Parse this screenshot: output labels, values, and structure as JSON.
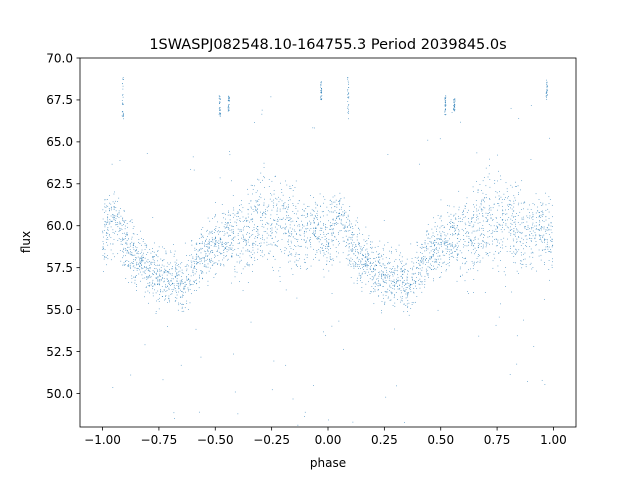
{
  "chart_data": {
    "type": "scatter",
    "title": "1SWASPJ082548.10-164755.3 Period 2039845.0s",
    "xlabel": "phase",
    "ylabel": "flux",
    "xlim": [
      -1.1,
      1.1
    ],
    "ylim": [
      48.0,
      70.0
    ],
    "xticks": [
      -1.0,
      -0.75,
      -0.5,
      -0.25,
      0.0,
      0.25,
      0.5,
      0.75,
      1.0
    ],
    "xtick_labels": [
      "−1.00",
      "−0.75",
      "−0.50",
      "−0.25",
      "0.00",
      "0.25",
      "0.50",
      "0.75",
      "1.00"
    ],
    "yticks": [
      50.0,
      52.5,
      55.0,
      57.5,
      60.0,
      62.5,
      65.0,
      67.5,
      70.0
    ],
    "ytick_labels": [
      "50.0",
      "52.5",
      "55.0",
      "57.5",
      "60.0",
      "62.5",
      "65.0",
      "67.5",
      "70.0"
    ],
    "grid": false,
    "point_color": "#1f77b4",
    "profile": {
      "phase": [
        0.0,
        0.05,
        0.1,
        0.15,
        0.2,
        0.25,
        0.3,
        0.35,
        0.4,
        0.45,
        0.5,
        0.55,
        0.6,
        0.65,
        0.7,
        0.75,
        0.8,
        0.85,
        0.9,
        0.95,
        1.0
      ],
      "flux": [
        59.3,
        60.6,
        59.0,
        57.8,
        57.3,
        57.0,
        57.0,
        56.3,
        57.2,
        58.4,
        58.9,
        59.3,
        59.3,
        59.6,
        60.3,
        60.6,
        60.1,
        59.5,
        59.7,
        60.0,
        59.3
      ],
      "spread": [
        1.8,
        1.4,
        1.8,
        1.6,
        1.5,
        1.5,
        1.6,
        1.7,
        1.6,
        1.5,
        1.5,
        1.6,
        1.8,
        2.1,
        2.4,
        2.6,
        2.3,
        2.0,
        1.8,
        1.6,
        1.8
      ]
    },
    "outlier_clusters": [
      {
        "phase": -0.91,
        "flux_min": 66.3,
        "flux_max": 68.9
      },
      {
        "phase": 0.09,
        "flux_min": 66.3,
        "flux_max": 68.9
      },
      {
        "phase": -0.48,
        "flux_min": 66.5,
        "flux_max": 67.8
      },
      {
        "phase": 0.52,
        "flux_min": 66.5,
        "flux_max": 67.8
      },
      {
        "phase": -0.44,
        "flux_min": 66.8,
        "flux_max": 67.8
      },
      {
        "phase": 0.56,
        "flux_min": 66.8,
        "flux_max": 67.8
      },
      {
        "phase": 0.97,
        "flux_min": 67.5,
        "flux_max": 68.7
      },
      {
        "phase": -0.03,
        "flux_min": 67.5,
        "flux_max": 68.7
      }
    ],
    "n_points": 3600,
    "n_scatter_outliers": 90
  }
}
